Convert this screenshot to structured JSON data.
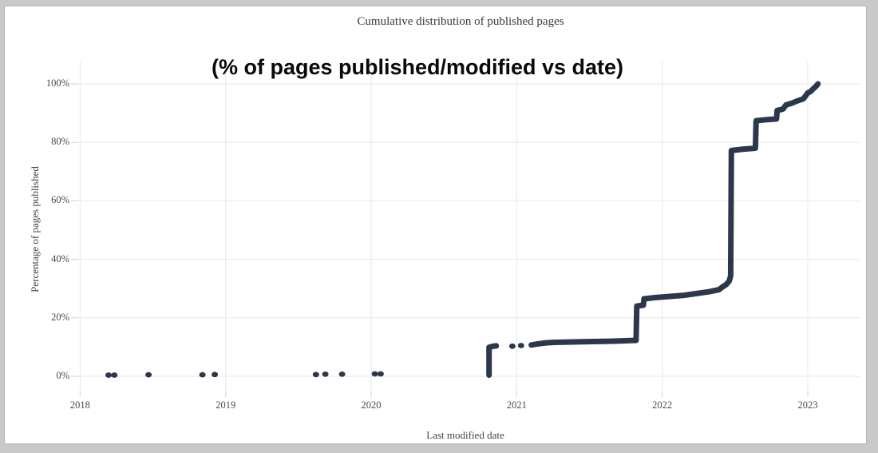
{
  "frame": {
    "background": "#c9c9c9",
    "surface": "#ffffff"
  },
  "chart_data": {
    "type": "scatter",
    "title": "Cumulative distribution of published pages",
    "annotation": "(% of pages published/modified vs date)",
    "xlabel": "Last modified date",
    "ylabel": "Percentage of pages published",
    "x_range": [
      2017.888,
      2023.362
    ],
    "y_range": [
      -5.2,
      108.2
    ],
    "grid": true,
    "legend": "none",
    "marker_color": "#2b384c",
    "grid_color": "#ececec",
    "tick_line_color": "#d8d8d8",
    "x_ticks": [
      {
        "value": 2018,
        "label": "2018"
      },
      {
        "value": 2019,
        "label": "2019"
      },
      {
        "value": 2020,
        "label": "2020"
      },
      {
        "value": 2021,
        "label": "2021"
      },
      {
        "value": 2022,
        "label": "2022"
      },
      {
        "value": 2023,
        "label": "2023"
      }
    ],
    "y_ticks": [
      {
        "value": 0,
        "label": "0%"
      },
      {
        "value": 20,
        "label": "20%"
      },
      {
        "value": 40,
        "label": "40%"
      },
      {
        "value": 60,
        "label": "60%"
      },
      {
        "value": 80,
        "label": "80%"
      },
      {
        "value": 100,
        "label": "100%"
      }
    ],
    "isolated_points": [
      [
        2018.195,
        0.4
      ],
      [
        2018.235,
        0.4
      ],
      [
        2018.47,
        0.5
      ],
      [
        2018.84,
        0.5
      ],
      [
        2018.925,
        0.6
      ],
      [
        2019.62,
        0.6
      ],
      [
        2019.685,
        0.7
      ],
      [
        2019.8,
        0.7
      ],
      [
        2020.025,
        0.8
      ],
      [
        2020.065,
        0.8
      ],
      [
        2020.97,
        10.3
      ],
      [
        2021.03,
        10.5
      ]
    ],
    "segments": [
      [
        [
          2020.81,
          0.4
        ],
        [
          2020.81,
          9.9
        ],
        [
          2020.835,
          10.25
        ],
        [
          2020.86,
          10.4
        ]
      ],
      [
        [
          2021.1,
          10.7
        ],
        [
          2021.15,
          11.1
        ],
        [
          2021.2,
          11.45
        ],
        [
          2021.26,
          11.6
        ],
        [
          2021.45,
          11.8
        ],
        [
          2021.65,
          12.0
        ],
        [
          2021.82,
          12.3
        ],
        [
          2021.825,
          24.0
        ],
        [
          2021.87,
          24.3
        ],
        [
          2021.875,
          26.5
        ],
        [
          2021.95,
          26.9
        ],
        [
          2022.15,
          27.7
        ],
        [
          2022.32,
          28.9
        ],
        [
          2022.39,
          29.6
        ],
        [
          2022.41,
          30.4
        ],
        [
          2022.44,
          31.4
        ],
        [
          2022.46,
          32.6
        ],
        [
          2022.47,
          34.3
        ],
        [
          2022.475,
          77.2
        ],
        [
          2022.56,
          77.7
        ],
        [
          2022.64,
          78.0
        ],
        [
          2022.645,
          87.4
        ],
        [
          2022.72,
          87.8
        ],
        [
          2022.785,
          88.0
        ],
        [
          2022.79,
          90.9
        ],
        [
          2022.83,
          91.4
        ],
        [
          2022.85,
          92.8
        ],
        [
          2022.89,
          93.4
        ],
        [
          2022.93,
          94.2
        ],
        [
          2022.97,
          94.9
        ],
        [
          2023.0,
          96.9
        ],
        [
          2023.02,
          97.4
        ],
        [
          2023.035,
          98.2
        ],
        [
          2023.055,
          99.1
        ],
        [
          2023.07,
          100.0
        ]
      ]
    ]
  }
}
